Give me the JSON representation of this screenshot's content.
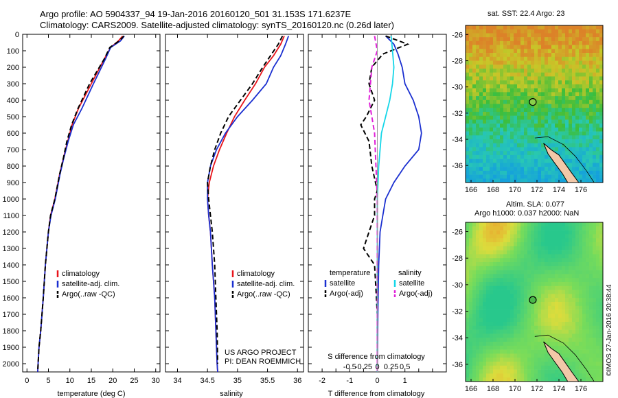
{
  "header": {
    "line1": "Argo profile: AO 5904337_94 19-Jan-2016 20160120_501 31.153S 171.6237E",
    "line2": "Climatology: CARS2009. Satellite-adjusted climatology: synTS_20160120.nc (0.26d later)"
  },
  "credit": "©IMOS 27-Jan-2016 20:38:44",
  "colors": {
    "clim": "#e8141a",
    "sat": "#1a2fd0",
    "argo": "#000000",
    "sal_sat": "#14d6e8",
    "sal_argo": "#e020d8"
  },
  "chart_data": [
    {
      "type": "line",
      "xlabel": "temperature (deg C)",
      "xlim": [
        -1,
        31
      ],
      "xticks": [
        0,
        5,
        10,
        15,
        20,
        25,
        30
      ],
      "ylim": [
        0,
        2050
      ],
      "yticks": [
        0,
        100,
        200,
        300,
        400,
        500,
        600,
        700,
        800,
        900,
        1000,
        1100,
        1200,
        1300,
        1400,
        1500,
        1600,
        1700,
        1800,
        1900,
        2000
      ],
      "legend": [
        "climatology",
        "satellite-adj. clim.",
        "Argo(..raw -QC)"
      ],
      "series": [
        {
          "name": "climatology",
          "style": "solid",
          "color": "clim",
          "x": [
            22.3,
            21.3,
            19.5,
            18.0,
            15.0,
            12.0,
            10.5,
            9.5,
            8.5,
            7.6,
            6.5,
            5.5,
            5.0,
            4.3,
            3.8,
            3.2,
            2.8,
            2.6,
            2.5
          ],
          "y": [
            10,
            40,
            80,
            150,
            300,
            450,
            550,
            650,
            750,
            850,
            1000,
            1100,
            1200,
            1400,
            1600,
            1800,
            1900,
            2000,
            2050
          ]
        },
        {
          "name": "satellite-adj. clim.",
          "style": "solid",
          "color": "sat",
          "x": [
            22.7,
            21.8,
            19.5,
            18.3,
            15.5,
            12.8,
            10.8,
            9.6,
            8.6,
            7.7,
            6.6,
            5.6,
            5.0,
            4.3,
            3.8,
            3.2,
            2.8,
            2.6,
            2.5
          ],
          "y": [
            10,
            40,
            80,
            150,
            300,
            450,
            550,
            650,
            750,
            850,
            1000,
            1100,
            1200,
            1400,
            1600,
            1800,
            1900,
            2000,
            2050
          ]
        },
        {
          "name": "Argo(..raw -QC)",
          "style": "dashed",
          "color": "argo",
          "x": [
            22.6,
            21.5,
            19.3,
            18.0,
            14.6,
            11.9,
            10.4,
            9.3,
            8.5,
            7.6,
            6.5,
            5.5,
            5.0,
            4.3,
            3.8,
            3.2,
            2.8,
            2.6,
            2.5
          ],
          "y": [
            10,
            40,
            80,
            150,
            300,
            450,
            550,
            650,
            750,
            850,
            1000,
            1100,
            1200,
            1400,
            1600,
            1800,
            1900,
            2000,
            2050
          ]
        }
      ]
    },
    {
      "type": "line",
      "xlabel": "salinity",
      "xlim": [
        33.8,
        36.1
      ],
      "xticks": [
        34,
        34.5,
        35,
        35.5,
        36
      ],
      "xticklabels": [
        "34",
        "34.5",
        "35",
        "35.5",
        "36"
      ],
      "ylim": [
        0,
        2050
      ],
      "legend": [
        "climatology",
        "satellite-adj. clim.",
        "Argo(..raw -QC)"
      ],
      "annotation": [
        "US ARGO PROJECT",
        "PI: DEAN ROEMMICH"
      ],
      "series": [
        {
          "name": "climatology",
          "style": "solid",
          "color": "clim",
          "x": [
            35.78,
            35.72,
            35.6,
            35.45,
            35.3,
            35.12,
            34.95,
            34.82,
            34.7,
            34.6,
            34.53,
            34.5,
            34.52,
            34.55,
            34.58,
            34.62,
            34.64,
            34.66,
            34.67
          ],
          "y": [
            10,
            60,
            130,
            200,
            300,
            400,
            500,
            600,
            700,
            800,
            900,
            1000,
            1100,
            1200,
            1400,
            1600,
            1800,
            2000,
            2050
          ]
        },
        {
          "name": "satellite-adj. clim.",
          "style": "solid",
          "color": "sat",
          "x": [
            35.85,
            35.8,
            35.72,
            35.6,
            35.48,
            35.25,
            35.0,
            34.8,
            34.65,
            34.55,
            34.5,
            34.5,
            34.52,
            34.55,
            34.58,
            34.62,
            34.64,
            34.66,
            34.67
          ],
          "y": [
            10,
            60,
            130,
            200,
            300,
            400,
            500,
            600,
            700,
            800,
            900,
            1000,
            1100,
            1200,
            1400,
            1600,
            1800,
            2000,
            2050
          ]
        },
        {
          "name": "Argo(..raw -QC)",
          "style": "dashed",
          "color": "argo",
          "x": [
            35.75,
            35.68,
            35.55,
            35.42,
            35.25,
            35.05,
            34.85,
            34.72,
            34.62,
            34.55,
            34.5,
            34.52,
            34.55,
            34.58,
            34.62,
            34.64,
            34.66,
            34.67
          ],
          "y": [
            10,
            60,
            130,
            200,
            300,
            400,
            500,
            600,
            700,
            800,
            900,
            1000,
            1100,
            1200,
            1400,
            1600,
            1800,
            2000
          ]
        }
      ]
    },
    {
      "type": "line",
      "xlabel_s": "S difference from climatology",
      "xlabel_t": "T difference from climatology",
      "xlim": [
        -2.5,
        2.5
      ],
      "xticks": [
        -2,
        -1.5,
        -1,
        -0.5,
        0,
        0.5,
        1,
        1.5,
        2
      ],
      "xticklabels": [
        "-2",
        "",
        "-1",
        "",
        "0",
        "",
        "1",
        "",
        ""
      ],
      "s_ticks": [
        -1,
        -0.5,
        0,
        0.5,
        1
      ],
      "s_ticklabels": [
        "-0.5",
        "-0.25",
        "0",
        "0.25",
        "0.5"
      ],
      "ylim": [
        0,
        2050
      ],
      "legend_t": [
        "temperature",
        "satellite",
        "Argo(-adj)"
      ],
      "legend_s": [
        "salinity",
        "satellite",
        "Argo(-adj)"
      ],
      "series": [
        {
          "name": "temperature satellite",
          "style": "solid",
          "color": "sat",
          "x": [
            0.3,
            0.6,
            0.75,
            0.9,
            1.0,
            1.3,
            1.5,
            1.6,
            1.5,
            1.0,
            0.6,
            0.3,
            0.2,
            0.1,
            0.05,
            0.02,
            0.0
          ],
          "y": [
            10,
            60,
            120,
            200,
            300,
            400,
            500,
            600,
            700,
            800,
            900,
            1000,
            1100,
            1200,
            1400,
            1700,
            2050
          ]
        },
        {
          "name": "temperature Argo(-adj)",
          "style": "dashed",
          "color": "argo",
          "x": [
            0.3,
            1.1,
            0.2,
            -0.2,
            -0.3,
            -0.1,
            -0.4,
            -0.6,
            -0.3,
            -0.2,
            0.0,
            -0.1,
            -0.1,
            -0.3,
            -0.5,
            -0.1,
            0.0,
            0.0
          ],
          "y": [
            10,
            60,
            120,
            200,
            300,
            400,
            500,
            550,
            650,
            800,
            950,
            1000,
            1100,
            1200,
            1300,
            1400,
            1700,
            2050
          ]
        },
        {
          "name": "salinity satellite",
          "style": "solid",
          "color": "sal_sat",
          "x": [
            0.5,
            0.55,
            0.6,
            0.55,
            0.45,
            0.3,
            0.15,
            0.05,
            0.0,
            0.0,
            0.0
          ],
          "y": [
            10,
            100,
            200,
            300,
            400,
            500,
            600,
            800,
            1000,
            1500,
            2050
          ]
        },
        {
          "name": "salinity Argo(-adj)",
          "style": "dashed",
          "color": "sal_argo",
          "x": [
            -0.1,
            0.0,
            -0.2,
            -0.25,
            -0.3,
            -0.2,
            -0.1,
            -0.05,
            0.0,
            0.0
          ],
          "y": [
            10,
            100,
            200,
            300,
            400,
            500,
            600,
            800,
            1000,
            2050
          ]
        }
      ]
    }
  ],
  "maps": [
    {
      "title": "sat. SST: 22.4 Argo: 23",
      "xticks": [
        166,
        168,
        170,
        172,
        174,
        176
      ],
      "yticks": [
        -26,
        -28,
        -30,
        -32,
        -34,
        -36
      ],
      "xlim": [
        165.5,
        178
      ],
      "ylim": [
        -37.3,
        -25.3
      ],
      "marker": {
        "lon": 171.62,
        "lat": -31.15
      }
    },
    {
      "title_line1": "Altim. SLA: 0.077",
      "title_line2": "Argo h1000: 0.037 h2000: NaN",
      "xticks": [
        166,
        168,
        170,
        172,
        174,
        176
      ],
      "yticks": [
        -26,
        -28,
        -30,
        -32,
        -34,
        -36
      ],
      "xlim": [
        165.5,
        178
      ],
      "ylim": [
        -37.3,
        -25.3
      ],
      "marker": {
        "lon": 171.62,
        "lat": -31.15
      }
    }
  ]
}
